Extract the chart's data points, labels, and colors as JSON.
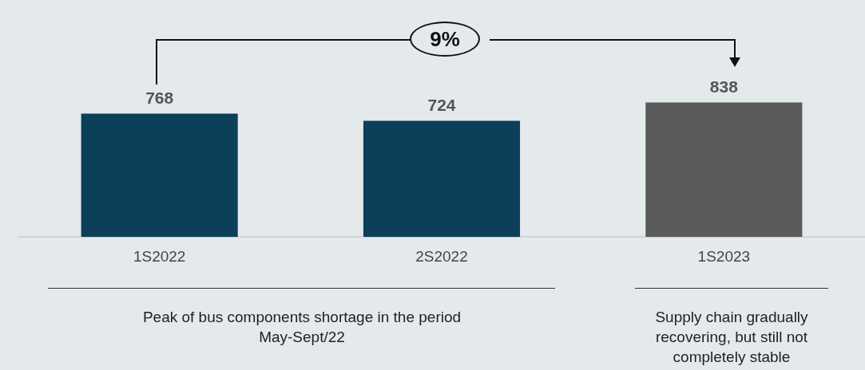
{
  "chart_data": {
    "type": "bar",
    "categories": [
      "1S2022",
      "2S2022",
      "1S2023"
    ],
    "values": [
      768,
      724,
      838
    ],
    "colors": [
      "#0b3f5a",
      "#0b3f5a",
      "#5a5a5a"
    ],
    "tick_labels": "x",
    "data_labels": true,
    "grid": false,
    "legend": false,
    "annotations": [
      "9%",
      "Peak of bus components shortage in the period May-Sept/22",
      "Supply chain gradually recovering, but still not completely stable"
    ]
  }
}
